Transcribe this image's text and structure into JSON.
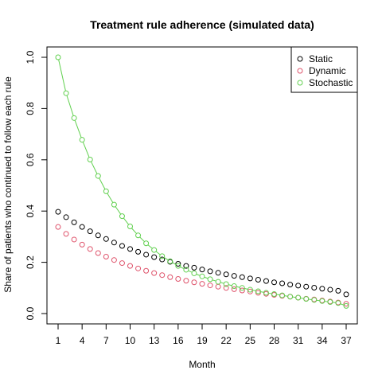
{
  "chart_data": {
    "type": "scatter",
    "title": "Treatment rule adherence (simulated data)",
    "xlabel": "Month",
    "ylabel": "Share of patients who continued to follow each rule",
    "xlim": [
      1,
      37
    ],
    "ylim": [
      0,
      1
    ],
    "x_ticks": [
      1,
      4,
      7,
      10,
      13,
      16,
      19,
      22,
      25,
      28,
      31,
      34,
      37
    ],
    "y_ticks": [
      0.0,
      0.2,
      0.4,
      0.6,
      0.8,
      1.0
    ],
    "y_tick_labels": [
      "0.0",
      "0.2",
      "0.4",
      "0.6",
      "0.8",
      "1.0"
    ],
    "legend_position": "top-right",
    "grid": false,
    "x": [
      1,
      2,
      3,
      4,
      5,
      6,
      7,
      8,
      9,
      10,
      11,
      12,
      13,
      14,
      15,
      16,
      17,
      18,
      19,
      20,
      21,
      22,
      23,
      24,
      25,
      26,
      27,
      28,
      29,
      30,
      31,
      32,
      33,
      34,
      35,
      36,
      37
    ],
    "series": [
      {
        "name": "Static",
        "color": "#000000",
        "marker": "open-circle",
        "connected": false,
        "values": [
          0.397,
          0.376,
          0.356,
          0.338,
          0.321,
          0.305,
          0.291,
          0.277,
          0.264,
          0.252,
          0.241,
          0.23,
          0.22,
          0.211,
          0.202,
          0.194,
          0.186,
          0.179,
          0.172,
          0.165,
          0.159,
          0.153,
          0.147,
          0.142,
          0.137,
          0.132,
          0.127,
          0.122,
          0.118,
          0.113,
          0.109,
          0.105,
          0.101,
          0.097,
          0.093,
          0.089,
          0.075
        ]
      },
      {
        "name": "Dynamic",
        "color": "#DF536B",
        "marker": "open-circle",
        "connected": false,
        "values": [
          0.338,
          0.311,
          0.289,
          0.269,
          0.252,
          0.236,
          0.222,
          0.209,
          0.197,
          0.186,
          0.176,
          0.167,
          0.158,
          0.15,
          0.142,
          0.135,
          0.128,
          0.122,
          0.116,
          0.11,
          0.105,
          0.1,
          0.095,
          0.09,
          0.086,
          0.081,
          0.077,
          0.073,
          0.069,
          0.066,
          0.062,
          0.058,
          0.055,
          0.051,
          0.047,
          0.043,
          0.038
        ]
      },
      {
        "name": "Stochastic",
        "color": "#61D04F",
        "marker": "open-circle",
        "connected": true,
        "values": [
          1.0,
          0.86,
          0.763,
          0.678,
          0.601,
          0.537,
          0.477,
          0.425,
          0.38,
          0.34,
          0.305,
          0.274,
          0.248,
          0.224,
          0.204,
          0.186,
          0.171,
          0.157,
          0.145,
          0.134,
          0.124,
          0.115,
          0.107,
          0.1,
          0.093,
          0.087,
          0.081,
          0.076,
          0.071,
          0.066,
          0.062,
          0.057,
          0.053,
          0.049,
          0.045,
          0.041,
          0.03
        ]
      }
    ]
  }
}
